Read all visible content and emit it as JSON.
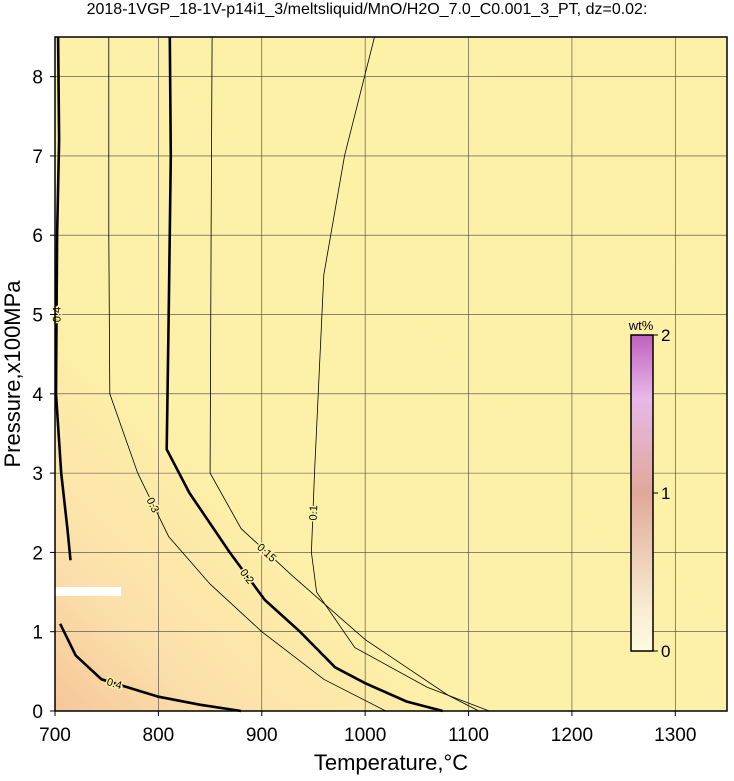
{
  "chart_data": {
    "type": "contour",
    "title": "2018-1VGP_18-1V-p14i1_3/meltsliquid/MnO/H2O_7.0_C0.001_3_PT, dz=0.02:",
    "x_label": "Temperature,°C",
    "y_label": "Pressure,x100MPa",
    "xlim": [
      700,
      1350
    ],
    "ylim": [
      0,
      8.5
    ],
    "xticks": [
      700,
      800,
      900,
      1000,
      1100,
      1200,
      1300
    ],
    "yticks": [
      0,
      1,
      2,
      3,
      4,
      5,
      6,
      7,
      8
    ],
    "grid": true,
    "contours": [
      {
        "level": 0.2,
        "bold": true,
        "x": [
          811,
          812,
          810,
          808,
          830,
          869,
          903,
          937,
          971,
          1000,
          1040,
          1075
        ],
        "y": [
          8.5,
          7,
          5,
          3.3,
          2.75,
          2.0,
          1.4,
          1.0,
          0.55,
          0.35,
          0.12,
          0
        ]
      },
      {
        "level": 0.1,
        "bold": false,
        "x": [
          1009,
          980,
          960,
          951,
          948,
          953,
          990,
          1060,
          1120
        ],
        "y": [
          8.5,
          7,
          5.5,
          3,
          2.0,
          1.5,
          0.8,
          0.3,
          0
        ]
      },
      {
        "level": 0.15,
        "bold": false,
        "x": [
          852,
          851,
          850,
          880,
          930,
          1000,
          1080,
          1110
        ],
        "y": [
          8.5,
          6,
          3,
          2.3,
          1.7,
          0.9,
          0.2,
          0
        ]
      },
      {
        "level": 0.3,
        "bold": false,
        "x": [
          752,
          752,
          753,
          780,
          810,
          850,
          900,
          960,
          1020
        ],
        "y": [
          8.5,
          6,
          4,
          3,
          2.2,
          1.6,
          1.0,
          0.4,
          0
        ]
      },
      {
        "level": 0.4,
        "bold": true,
        "x": [
          703,
          704,
          702,
          701,
          706,
          712,
          715
        ],
        "y": [
          8.5,
          7.2,
          6,
          4,
          3,
          2.3,
          1.9
        ]
      },
      {
        "level": 0.4,
        "bold": true,
        "x": [
          705,
          720,
          745,
          770,
          800,
          840,
          880
        ],
        "y": [
          1.1,
          0.7,
          0.4,
          0.3,
          0.18,
          0.08,
          0
        ]
      }
    ],
    "colorbar": {
      "label": "wt%",
      "lim": [
        0,
        2
      ],
      "ticks": [
        0,
        1,
        2
      ]
    }
  }
}
